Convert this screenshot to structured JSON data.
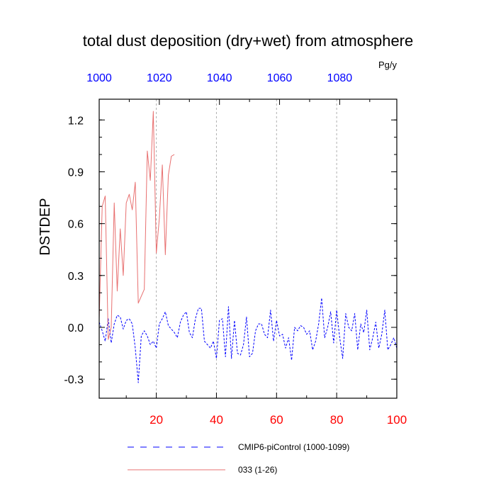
{
  "chart_data": {
    "type": "line",
    "title": "total dust deposition (dry+wet) from atmosphere",
    "ylabel": "DSTDEP",
    "units": "Pg/y",
    "ylim": [
      -0.41,
      1.32
    ],
    "yticks": [
      {
        "v": -0.3,
        "label": "-0.3"
      },
      {
        "v": 0.0,
        "label": "0.0"
      },
      {
        "v": 0.3,
        "label": "0.3"
      },
      {
        "v": 0.6,
        "label": "0.6"
      },
      {
        "v": 0.9,
        "label": "0.9"
      },
      {
        "v": 1.2,
        "label": "1.2"
      }
    ],
    "bottom_axis": {
      "range": [
        1,
        100
      ],
      "ticks": [
        {
          "v": 20,
          "label": "20"
        },
        {
          "v": 40,
          "label": "40"
        },
        {
          "v": 60,
          "label": "60"
        },
        {
          "v": 80,
          "label": "80"
        },
        {
          "v": 100,
          "label": "100"
        }
      ],
      "color": "#ff0000"
    },
    "top_axis": {
      "range": [
        1000,
        1099
      ],
      "ticks": [
        {
          "v": 1000,
          "label": "1000"
        },
        {
          "v": 1020,
          "label": "1020"
        },
        {
          "v": 1040,
          "label": "1040"
        },
        {
          "v": 1060,
          "label": "1060"
        },
        {
          "v": 1080,
          "label": "1080"
        }
      ],
      "color": "#0000ff"
    },
    "vgrid_x": [
      20,
      40,
      60,
      80
    ],
    "legend_position": "bottom",
    "series": [
      {
        "name": "CMIP6-piControl (1000-1099)",
        "color": "#0000ff",
        "dash": "dashed",
        "x_start": 1,
        "values": [
          0.03,
          -0.02,
          -0.08,
          0.05,
          -0.09,
          0.02,
          0.07,
          0.06,
          -0.01,
          0.04,
          0.05,
          0.02,
          -0.12,
          -0.32,
          -0.05,
          -0.02,
          -0.05,
          -0.1,
          -0.08,
          -0.12,
          0.02,
          0.05,
          0.09,
          0.01,
          -0.01,
          -0.03,
          -0.06,
          0.03,
          0.07,
          0.09,
          -0.03,
          -0.06,
          0.05,
          0.11,
          0.11,
          -0.08,
          -0.1,
          -0.12,
          -0.08,
          -0.18,
          0.04,
          0.05,
          -0.17,
          0.12,
          -0.18,
          0.04,
          -0.15,
          -0.16,
          -0.1,
          0.06,
          -0.17,
          -0.15,
          -0.02,
          0.02,
          0.02,
          -0.04,
          -0.06,
          0.1,
          -0.08,
          0.04,
          -0.05,
          -0.04,
          -0.12,
          -0.06,
          -0.19,
          0.0,
          -0.02,
          0.01,
          0.0,
          -0.04,
          -0.02,
          -0.13,
          -0.08,
          0.02,
          0.17,
          -0.06,
          0.0,
          0.09,
          -0.09,
          0.1,
          -0.06,
          -0.18,
          0.08,
          0.0,
          -0.02,
          0.08,
          -0.13,
          0.02,
          -0.03,
          0.1,
          -0.13,
          -0.06,
          0.03,
          -0.12,
          -0.04,
          0.1,
          -0.13,
          -0.1,
          -0.06,
          -0.12
        ]
      },
      {
        "name": "033 (1-26)",
        "color": "#e87070",
        "dash": "solid",
        "x_start": 1,
        "values": [
          0.05,
          0.7,
          0.76,
          -0.07,
          0.0,
          0.72,
          0.21,
          0.57,
          0.3,
          0.72,
          0.77,
          0.68,
          0.84,
          0.14,
          0.18,
          0.22,
          1.02,
          0.85,
          1.25,
          0.43,
          0.63,
          0.94,
          0.42,
          0.88,
          0.99,
          1.0
        ]
      }
    ]
  }
}
